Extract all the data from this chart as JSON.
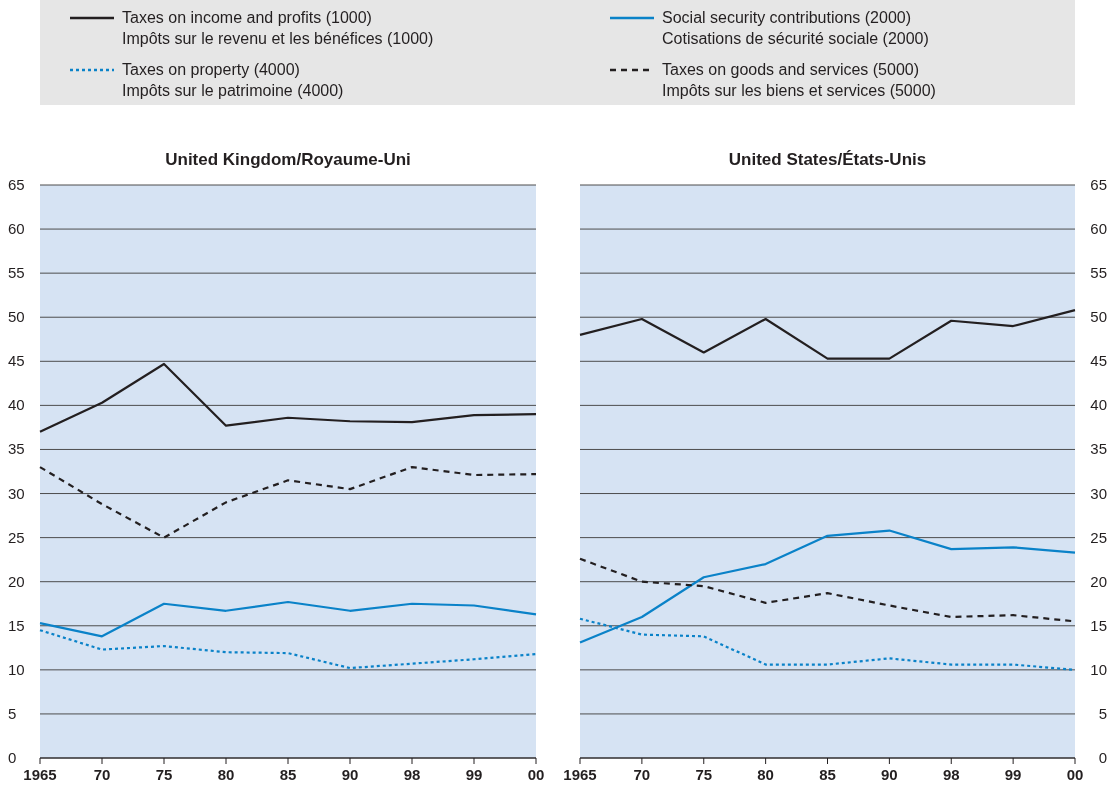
{
  "chart_data": [
    {
      "type": "line",
      "title": "United Kingdom/Royaume-Uni",
      "categories": [
        "1965",
        "70",
        "75",
        "80",
        "85",
        "90",
        "98",
        "99",
        "00"
      ],
      "ylim": [
        0,
        65
      ],
      "yticks": [
        0,
        5,
        10,
        15,
        20,
        25,
        30,
        35,
        40,
        45,
        50,
        55,
        60,
        65
      ],
      "grid": "y",
      "legend": "top",
      "series": [
        {
          "name": "Taxes on income and profits (1000)\nImpôts sur le revenu et les bénéfices (1000)",
          "color": "#231f20",
          "line_style": "solid",
          "values": [
            37,
            40.3,
            44.7,
            37.7,
            38.6,
            38.2,
            38.1,
            38.9,
            39.0
          ]
        },
        {
          "name": "Social security contributions (2000)\nCotisations de sécurité sociale (2000)",
          "color": "#0a82c8",
          "line_style": "solid",
          "values": [
            15.3,
            13.8,
            17.5,
            16.7,
            17.7,
            16.7,
            17.5,
            17.3,
            16.3
          ]
        },
        {
          "name": "Taxes on property (4000)\nImpôts sur le patrimoine (4000)",
          "color": "#0a82c8",
          "line_style": "dotted",
          "values": [
            14.5,
            12.3,
            12.7,
            12.0,
            11.9,
            10.2,
            10.7,
            11.2,
            11.8
          ]
        },
        {
          "name": "Taxes on goods and services (5000)\nImpôts sur les biens et services (5000)",
          "color": "#231f20",
          "line_style": "dashed",
          "values": [
            33,
            28.8,
            25,
            29,
            31.5,
            30.5,
            33,
            32.1,
            32.2
          ]
        }
      ]
    },
    {
      "type": "line",
      "title": "United States/États-Unis",
      "categories": [
        "1965",
        "70",
        "75",
        "80",
        "85",
        "90",
        "98",
        "99",
        "00"
      ],
      "ylim": [
        0,
        65
      ],
      "yticks": [
        0,
        5,
        10,
        15,
        20,
        25,
        30,
        35,
        40,
        45,
        50,
        55,
        60,
        65
      ],
      "grid": "y",
      "series": [
        {
          "color": "#231f20",
          "line_style": "solid",
          "values": [
            48,
            49.8,
            46,
            49.8,
            45.3,
            45.3,
            49.6,
            49,
            50.8
          ]
        },
        {
          "color": "#0a82c8",
          "line_style": "solid",
          "values": [
            13.1,
            16,
            20.5,
            22,
            25.2,
            25.8,
            23.7,
            23.9,
            23.3
          ]
        },
        {
          "color": "#0a82c8",
          "line_style": "dotted",
          "values": [
            15.8,
            14,
            13.8,
            10.6,
            10.6,
            11.3,
            10.6,
            10.6,
            10
          ]
        },
        {
          "color": "#231f20",
          "line_style": "dashed",
          "values": [
            22.6,
            20,
            19.5,
            17.6,
            18.7,
            17.3,
            16,
            16.2,
            15.5
          ]
        }
      ]
    }
  ]
}
